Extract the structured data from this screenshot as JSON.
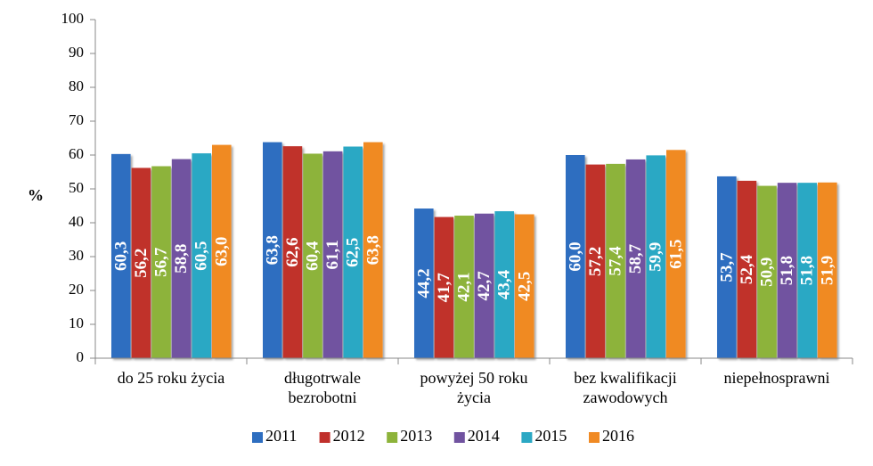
{
  "chart_data": {
    "type": "bar",
    "title": "",
    "xlabel": "",
    "ylabel": "%",
    "ylim": [
      0,
      100
    ],
    "yticks": [
      "0",
      "10",
      "20",
      "30",
      "40",
      "50",
      "60",
      "70",
      "80",
      "90",
      "100"
    ],
    "grid": false,
    "legend_position": "bottom",
    "categories": [
      [
        "do 25 roku życia"
      ],
      [
        "długotrwale",
        "bezrobotni"
      ],
      [
        "powyżej 50 roku",
        "życia"
      ],
      [
        "bez kwalifikacji",
        "zawodowych"
      ],
      [
        "niepełnosprawni"
      ]
    ],
    "series": [
      {
        "name": "2011",
        "color": "#2E6EC0",
        "values": [
          60.3,
          63.8,
          44.2,
          60.0,
          53.7
        ],
        "labels": [
          "60,3",
          "63,8",
          "44,2",
          "60,0",
          "53,7"
        ]
      },
      {
        "name": "2012",
        "color": "#C0302C",
        "values": [
          56.2,
          62.6,
          41.7,
          57.2,
          52.4
        ],
        "labels": [
          "56,2",
          "62,6",
          "41,7",
          "57,2",
          "52,4"
        ]
      },
      {
        "name": "2013",
        "color": "#8DB33A",
        "values": [
          56.7,
          60.4,
          42.1,
          57.4,
          50.9
        ],
        "labels": [
          "56,7",
          "60,4",
          "42,1",
          "57,4",
          "50,9"
        ]
      },
      {
        "name": "2014",
        "color": "#7153A0",
        "values": [
          58.8,
          61.1,
          42.7,
          58.7,
          51.8
        ],
        "labels": [
          "58,8",
          "61,1",
          "42,7",
          "58,7",
          "51,8"
        ]
      },
      {
        "name": "2015",
        "color": "#2BA8C4",
        "values": [
          60.5,
          62.5,
          43.4,
          59.9,
          51.8
        ],
        "labels": [
          "60,5",
          "62,5",
          "43,4",
          "59,9",
          "51,8"
        ]
      },
      {
        "name": "2016",
        "color": "#F08A24",
        "values": [
          63.0,
          63.8,
          42.5,
          61.5,
          51.9
        ],
        "labels": [
          "63,0",
          "63,8",
          "42,5",
          "61,5",
          "51,9"
        ]
      }
    ]
  }
}
